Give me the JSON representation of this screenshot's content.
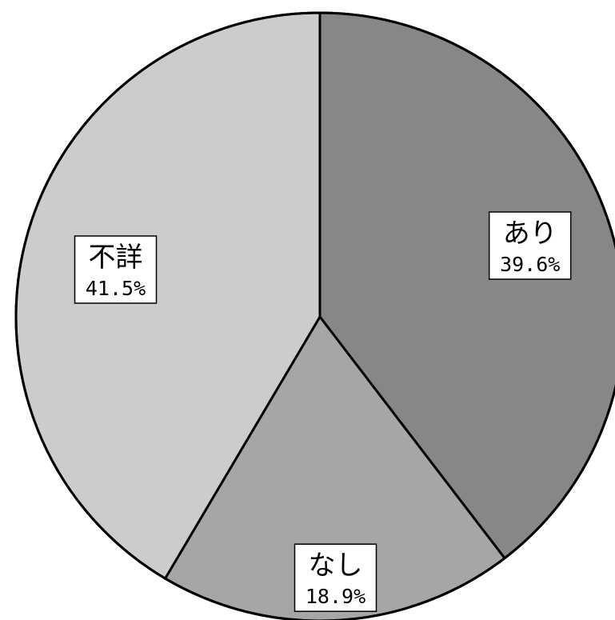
{
  "chart_data": {
    "type": "pie",
    "start": "top",
    "direction": "clockwise",
    "slices": [
      {
        "label": "あり",
        "value": 39.6,
        "value_label": "39.6%",
        "color": "#878787"
      },
      {
        "label": "なし",
        "value": 18.9,
        "value_label": "18.9%",
        "color": "#a6a6a6"
      },
      {
        "label": "不詳",
        "value": 41.5,
        "value_label": "41.5%",
        "color": "#cccccc"
      }
    ]
  }
}
